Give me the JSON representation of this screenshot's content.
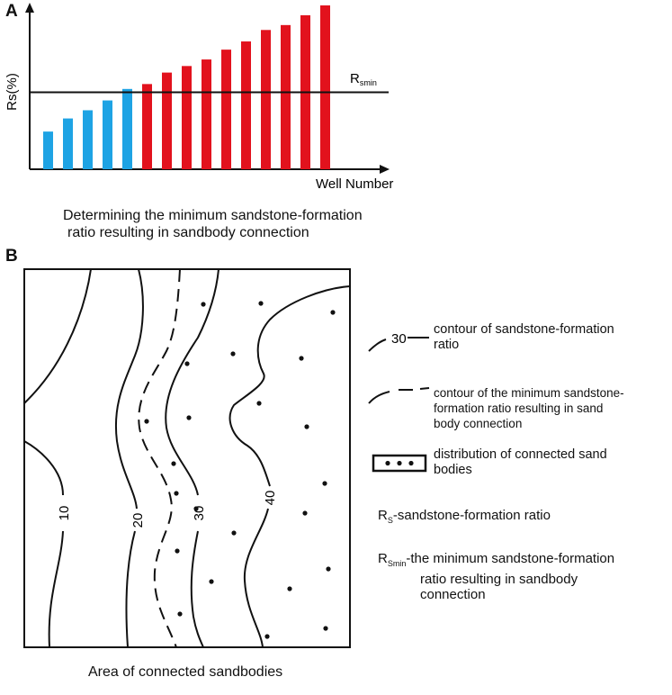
{
  "panel_a": {
    "label": "A",
    "ylabel": "Rs(%)",
    "xlabel": "Well Number",
    "threshold_label": "R",
    "threshold_sub": "smin",
    "threshold_level": 0.47,
    "caption_line1": "Determining the minimum sandstone-formation",
    "caption_line2": "ratio resulting in sandbody connection",
    "bars_blue": [
      0.23,
      0.31,
      0.36,
      0.42,
      0.49
    ],
    "bars_red": [
      0.52,
      0.59,
      0.63,
      0.67,
      0.73,
      0.78,
      0.85,
      0.88,
      0.94,
      1.0
    ],
    "colors": {
      "blue": "#1ea3e4",
      "red": "#e2121d"
    }
  },
  "panel_b": {
    "label": "B",
    "caption": "Area of connected sandbodies",
    "contour_labels": [
      "10",
      "20",
      "30",
      "40"
    ]
  },
  "legend": {
    "contour_sample_label": "30",
    "contour_line1": "contour of sandstone-formation",
    "contour_line2": "ratio",
    "min_line1": "contour of the minimum sandstone-",
    "min_line2": "formation ratio resulting in sand",
    "min_line3": "body connection",
    "dist_line1": "distribution of connected sand",
    "dist_line2": "bodies",
    "rs_main": "R",
    "rs_sub": "S",
    "rs_text": "-sandstone-formation ratio",
    "rsmin_main": "R",
    "rsmin_sub": "Smin",
    "rsmin_line1": "-the minimum sandstone-formation",
    "rsmin_line2": "ratio resulting in sandbody",
    "rsmin_line3": "connection"
  }
}
